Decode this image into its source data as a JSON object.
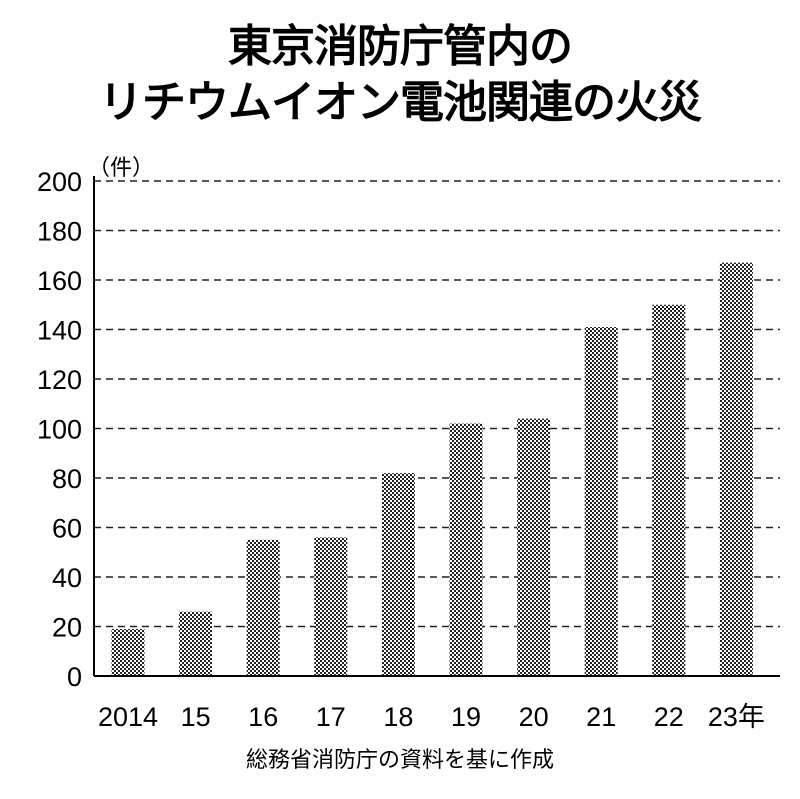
{
  "chart_data": {
    "type": "bar",
    "title": [
      "東京消防庁管内の",
      "リチウムイオン電池関連の火災"
    ],
    "ylabel": "（件）",
    "categories": [
      "2014",
      "15",
      "16",
      "17",
      "18",
      "19",
      "20",
      "21",
      "22",
      "23年"
    ],
    "values": [
      19,
      26,
      55,
      56,
      82,
      102,
      104,
      141,
      150,
      167
    ],
    "ylim": [
      0,
      200
    ],
    "yticks": [
      "0",
      "20",
      "40",
      "60",
      "80",
      "100",
      "120",
      "140",
      "160",
      "180",
      "200"
    ],
    "grid": true,
    "bar_fill": "checkered gray",
    "source": "総務省消防庁の資料を基に作成"
  }
}
